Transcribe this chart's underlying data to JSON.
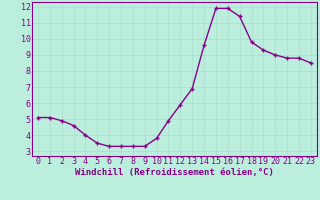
{
  "x": [
    0,
    1,
    2,
    3,
    4,
    5,
    6,
    7,
    8,
    9,
    10,
    11,
    12,
    13,
    14,
    15,
    16,
    17,
    18,
    19,
    20,
    21,
    22,
    23
  ],
  "y": [
    5.1,
    5.1,
    4.9,
    4.6,
    4.0,
    3.5,
    3.3,
    3.3,
    3.3,
    3.3,
    3.8,
    4.9,
    5.9,
    6.9,
    9.6,
    11.9,
    11.9,
    11.4,
    9.8,
    9.3,
    9.0,
    8.8,
    8.8,
    8.5
  ],
  "line_color": "#880088",
  "marker": "+",
  "marker_size": 3.5,
  "marker_linewidth": 1.0,
  "xlabel": "Windchill (Refroidissement éolien,°C)",
  "xlabel_fontsize": 6.5,
  "bg_color": "#bbeedd",
  "grid_color": "#aaddcc",
  "ylim": [
    3,
    12
  ],
  "xlim": [
    -0.5,
    23.5
  ],
  "yticks": [
    3,
    4,
    5,
    6,
    7,
    8,
    9,
    10,
    11,
    12
  ],
  "xticks": [
    0,
    1,
    2,
    3,
    4,
    5,
    6,
    7,
    8,
    9,
    10,
    11,
    12,
    13,
    14,
    15,
    16,
    17,
    18,
    19,
    20,
    21,
    22,
    23
  ],
  "tick_fontsize": 6.0,
  "tick_color": "#880088",
  "spine_color": "#880088",
  "linewidth": 1.0
}
